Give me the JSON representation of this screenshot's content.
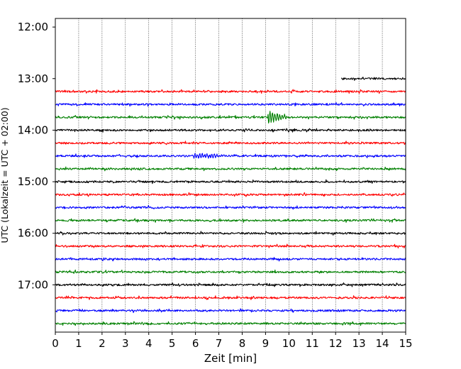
{
  "chart_data": {
    "type": "line",
    "title": "",
    "xlabel": "Zeit  [min]",
    "ylabel": "UTC (Lokalzeit = UTC + 02:00)",
    "xlim": [
      0,
      15
    ],
    "x_ticks": [
      "0",
      "1",
      "2",
      "3",
      "4",
      "5",
      "6",
      "7",
      "8",
      "9",
      "10",
      "11",
      "12",
      "13",
      "14",
      "15"
    ],
    "y_ticks": [
      "12:00",
      "13:00",
      "14:00",
      "15:00",
      "16:00",
      "17:00"
    ],
    "y_range": [
      "11:50",
      "17:55"
    ],
    "grid": "vertical dotted lines at each minute",
    "trace_interval": "15 min",
    "colors": {
      "black": "#000000",
      "red": "#ff0000",
      "blue": "#0000ff",
      "green": "#008000"
    },
    "traces": [
      {
        "start": "13:00",
        "color": "#000000",
        "x_start": 12.25,
        "x_end": 15
      },
      {
        "start": "13:15",
        "color": "#ff0000"
      },
      {
        "start": "13:30",
        "color": "#0000ff"
      },
      {
        "start": "13:45",
        "color": "#008000",
        "events": [
          {
            "x": 9.1,
            "amp": 1.0,
            "dur": 0.9
          }
        ]
      },
      {
        "start": "14:00",
        "color": "#000000"
      },
      {
        "start": "14:15",
        "color": "#ff0000"
      },
      {
        "start": "14:30",
        "color": "#0000ff",
        "events": [
          {
            "x": 5.9,
            "amp": 0.35,
            "dur": 2.6
          }
        ]
      },
      {
        "start": "14:45",
        "color": "#008000"
      },
      {
        "start": "15:00",
        "color": "#000000"
      },
      {
        "start": "15:15",
        "color": "#ff0000"
      },
      {
        "start": "15:30",
        "color": "#0000ff"
      },
      {
        "start": "15:45",
        "color": "#008000"
      },
      {
        "start": "16:00",
        "color": "#000000"
      },
      {
        "start": "16:15",
        "color": "#ff0000"
      },
      {
        "start": "16:30",
        "color": "#0000ff"
      },
      {
        "start": "16:45",
        "color": "#008000"
      },
      {
        "start": "17:00",
        "color": "#000000"
      },
      {
        "start": "17:15",
        "color": "#ff0000"
      },
      {
        "start": "17:30",
        "color": "#0000ff"
      },
      {
        "start": "17:45",
        "color": "#008000"
      }
    ]
  }
}
